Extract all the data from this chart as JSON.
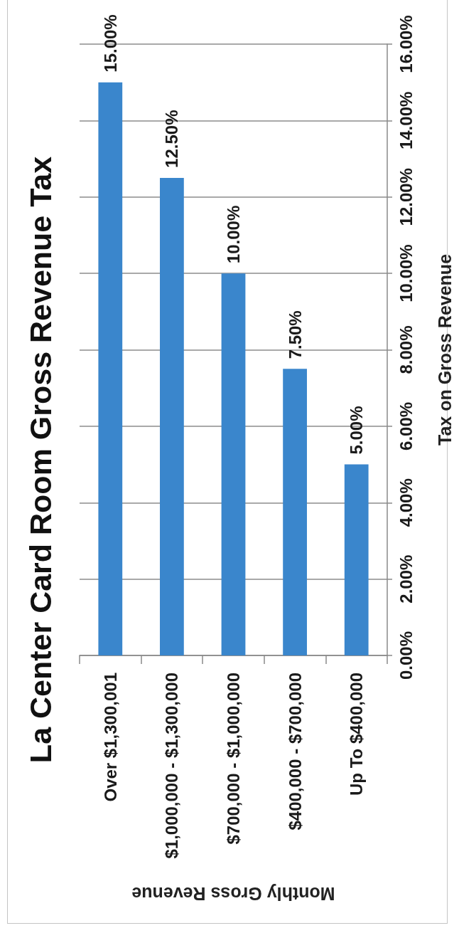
{
  "chart_data": {
    "type": "bar",
    "title": "La Center Card Room Gross Revenue Tax",
    "xlabel": "Monthly Gross Revenue",
    "ylabel": "Tax on Gross Revenue",
    "categories": [
      "Over $1,300,001",
      "$1,000,000 - $1,300,000",
      "$700,000 - $1,000,000",
      "$400,000 - $700,000",
      "Up To $400,000"
    ],
    "values": [
      15,
      12.5,
      10,
      7.5,
      5
    ],
    "color": "#3a86cc",
    "value_labels": [
      "15.00%",
      "12.50%",
      "10.00%",
      "7.50%",
      "5.00%"
    ],
    "ylim": [
      0,
      16
    ],
    "yticks": [
      {
        "value": 0,
        "label": "0.00%"
      },
      {
        "value": 2,
        "label": "2.00%"
      },
      {
        "value": 4,
        "label": "4.00%"
      },
      {
        "value": 6,
        "label": "6.00%"
      },
      {
        "value": 8,
        "label": "8.00%"
      },
      {
        "value": 10,
        "label": "10.00%"
      },
      {
        "value": 12,
        "label": "12.00%"
      },
      {
        "value": 14,
        "label": "14.00%"
      },
      {
        "value": 16,
        "label": "16.00%"
      }
    ],
    "grid": "y"
  }
}
